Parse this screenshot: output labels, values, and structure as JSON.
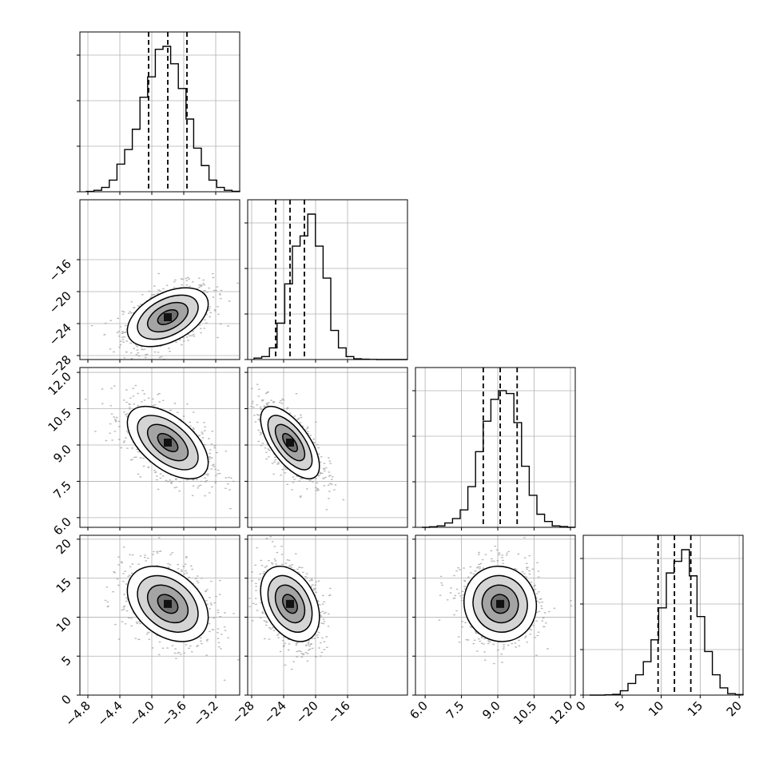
{
  "chart_data": {
    "type": "corner",
    "ndim": 4,
    "params": [
      {
        "range": [
          -4.9,
          -2.9
        ],
        "ticks": [
          -4.8,
          -4.4,
          -4.0,
          -3.6,
          -3.2
        ],
        "tick_labels": [
          "−4.8",
          "−4.4",
          "−4.0",
          "−3.6",
          "−3.2"
        ],
        "quantiles": [
          -4.04,
          -3.8,
          -3.56
        ],
        "hist_density": [
          0.002,
          0.01,
          0.03,
          0.08,
          0.19,
          0.29,
          0.43,
          0.65,
          0.79,
          0.98,
          1.0,
          0.88,
          0.71,
          0.5,
          0.3,
          0.18,
          0.08,
          0.03,
          0.01,
          0.003
        ]
      },
      {
        "range": [
          -28.5,
          -8.5
        ],
        "ticks": [
          -28,
          -24,
          -20,
          -16
        ],
        "tick_labels": [
          "−28",
          "−24",
          "−20",
          "−16"
        ],
        "quantiles": [
          -25.0,
          -23.2,
          -21.4
        ],
        "hist_density": [
          0.01,
          0.02,
          0.08,
          0.25,
          0.52,
          0.78,
          0.85,
          1.0,
          0.78,
          0.56,
          0.2,
          0.08,
          0.02,
          0.005,
          0.002,
          0.001,
          0.0,
          0.0,
          0.0,
          0.0
        ]
      },
      {
        "range": [
          5.6,
          12.2
        ],
        "ticks": [
          6.0,
          7.5,
          9.0,
          10.5,
          12.0
        ],
        "tick_labels": [
          "6.0",
          "7.5",
          "9.0",
          "10.5",
          "12.0"
        ],
        "quantiles": [
          8.4,
          9.1,
          9.8
        ],
        "hist_density": [
          0.0,
          0.004,
          0.01,
          0.03,
          0.06,
          0.12,
          0.28,
          0.52,
          0.73,
          0.88,
          0.94,
          0.92,
          0.72,
          0.42,
          0.22,
          0.09,
          0.04,
          0.01,
          0.005,
          0.0
        ]
      },
      {
        "range": [
          0.0,
          20.5
        ],
        "ticks": [
          0,
          5,
          10,
          15,
          20
        ],
        "tick_labels": [
          "0",
          "5",
          "10",
          "15",
          "20"
        ],
        "quantiles": [
          9.6,
          11.7,
          13.8
        ],
        "hist_density": [
          0.0,
          0.0,
          0.002,
          0.005,
          0.03,
          0.08,
          0.14,
          0.23,
          0.38,
          0.6,
          0.84,
          0.92,
          1.0,
          0.82,
          0.54,
          0.3,
          0.14,
          0.05,
          0.01,
          0.004
        ]
      }
    ],
    "pairs": [
      {
        "i": 1,
        "j": 0,
        "mean": [
          -3.8,
          -23.2
        ],
        "sd": [
          0.22,
          1.6
        ],
        "rho": 0.45
      },
      {
        "i": 2,
        "j": 0,
        "mean": [
          -3.8,
          9.1
        ],
        "sd": [
          0.22,
          0.65
        ],
        "rho": -0.55
      },
      {
        "i": 2,
        "j": 1,
        "mean": [
          -23.2,
          9.1
        ],
        "sd": [
          1.6,
          0.65
        ],
        "rho": -0.65
      },
      {
        "i": 3,
        "j": 0,
        "mean": [
          -3.8,
          11.7
        ],
        "sd": [
          0.22,
          2.1
        ],
        "rho": -0.35
      },
      {
        "i": 3,
        "j": 1,
        "mean": [
          -23.2,
          11.7
        ],
        "sd": [
          1.6,
          2.1
        ],
        "rho": -0.35
      },
      {
        "i": 3,
        "j": 2,
        "mean": [
          9.1,
          11.7
        ],
        "sd": [
          0.65,
          2.1
        ],
        "rho": -0.05
      }
    ],
    "contour_levels_sigma": [
      0.5,
      1.0,
      1.5,
      2.0
    ],
    "grid": true,
    "xlabel": "",
    "ylabel": "",
    "title": ""
  }
}
